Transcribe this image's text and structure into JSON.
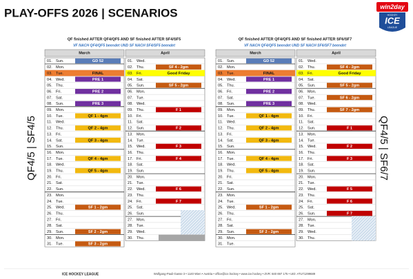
{
  "title": "PLAY-OFFS 2026 | SCENARIOS",
  "logo": {
    "brand": "win2day",
    "top": "HOCKEY",
    "main": "ICE",
    "bottom": "LEAGUE"
  },
  "footer": {
    "left": "ICE HOCKEY LEAGUE",
    "address": "Wolfgang-Pauli-Gasse 3 • 1140 Wien • Austria • office@ice.hockey • www.ice.hockey • ZVR: 840 697 175 • UID: ATU71299689"
  },
  "panels": [
    {
      "side_label": "QF4/5 | SF4/5",
      "header": "QF finished AFTER QF4/QF5 AND SF finished AFTER SF4/SF5",
      "subheader": "VF NACH QF4/QF5 beendet UND SF NACH SF4/SF5 beendet",
      "months": [
        {
          "name": "March",
          "rows": [
            {
              "d": "01.",
              "w": "Sun.",
              "e": "GD 52",
              "c": "#5a7db8"
            },
            {
              "d": "02.",
              "w": "Mon."
            },
            {
              "d": "03.",
              "w": "Tue.",
              "e": "FINAL",
              "bg": "#ed7d31"
            },
            {
              "d": "04.",
              "w": "Wed.",
              "e": "PRE 1",
              "c": "#7030a0"
            },
            {
              "d": "05.",
              "w": "Thu."
            },
            {
              "d": "06.",
              "w": "Fri.",
              "e": "PRE 2",
              "c": "#7030a0"
            },
            {
              "d": "07.",
              "w": "Sat."
            },
            {
              "d": "08.",
              "w": "Sun.",
              "e": "PRE 3",
              "c": "#7030a0"
            },
            {
              "d": "09.",
              "w": "Mon."
            },
            {
              "d": "10.",
              "w": "Tue.",
              "e": "QF 1 - 4gm",
              "c": "#f2b90f"
            },
            {
              "d": "11.",
              "w": "Wed."
            },
            {
              "d": "12.",
              "w": "Thu.",
              "e": "QF 2 - 4gm",
              "c": "#f2b90f"
            },
            {
              "d": "13.",
              "w": "Fri."
            },
            {
              "d": "14.",
              "w": "Sat.",
              "e": "QF 3 - 4gm",
              "c": "#f2b90f"
            },
            {
              "d": "15.",
              "w": "Sun."
            },
            {
              "d": "16.",
              "w": "Mon."
            },
            {
              "d": "17.",
              "w": "Tue.",
              "e": "QF 4 - 4gm",
              "c": "#f2b90f"
            },
            {
              "d": "18.",
              "w": "Wed."
            },
            {
              "d": "19.",
              "w": "Thu.",
              "e": "QF 5 - 4gm",
              "c": "#f2b90f"
            },
            {
              "d": "20.",
              "w": "Fri."
            },
            {
              "d": "21.",
              "w": "Sat."
            },
            {
              "d": "22.",
              "w": "Sun."
            },
            {
              "d": "23.",
              "w": "Mon."
            },
            {
              "d": "24.",
              "w": "Tue."
            },
            {
              "d": "25.",
              "w": "Wed.",
              "e": "SF 1 - 2gm",
              "c": "#c55a11"
            },
            {
              "d": "26.",
              "w": "Thu."
            },
            {
              "d": "27.",
              "w": "Fri."
            },
            {
              "d": "28.",
              "w": "Sat."
            },
            {
              "d": "29.",
              "w": "Sun.",
              "e": "SF 2 - 2gm",
              "c": "#c55a11"
            },
            {
              "d": "30.",
              "w": "Mon."
            },
            {
              "d": "31.",
              "w": "Tue.",
              "e": "SF 3 - 2gm",
              "c": "#c55a11"
            }
          ]
        },
        {
          "name": "April",
          "rows": [
            {
              "d": "01.",
              "w": "Wed."
            },
            {
              "d": "02.",
              "w": "Thu.",
              "e": "SF 4 - 2gm",
              "c": "#c55a11"
            },
            {
              "d": "03.",
              "w": "Fri.",
              "e": "Good Friday",
              "bg": "#ffff00"
            },
            {
              "d": "04.",
              "w": "Sat."
            },
            {
              "d": "05.",
              "w": "Sun.",
              "e": "SF 5 - 2gm",
              "c": "#c55a11"
            },
            {
              "d": "06.",
              "w": "Mon."
            },
            {
              "d": "07.",
              "w": "Tue."
            },
            {
              "d": "08.",
              "w": "Wed."
            },
            {
              "d": "09.",
              "w": "Thu.",
              "e": "F 1",
              "c": "#c00000"
            },
            {
              "d": "10.",
              "w": "Fri."
            },
            {
              "d": "11.",
              "w": "Sat."
            },
            {
              "d": "12.",
              "w": "Sun.",
              "e": "F 2",
              "c": "#c00000"
            },
            {
              "d": "13.",
              "w": "Mon."
            },
            {
              "d": "14.",
              "w": "Tue."
            },
            {
              "d": "15.",
              "w": "Wed.",
              "e": "F 3",
              "c": "#c00000"
            },
            {
              "d": "16.",
              "w": "Thu."
            },
            {
              "d": "17.",
              "w": "Fri.",
              "e": "F 4",
              "c": "#c00000"
            },
            {
              "d": "18.",
              "w": "Sat."
            },
            {
              "d": "19.",
              "w": "Sun."
            },
            {
              "d": "20.",
              "w": "Mon."
            },
            {
              "d": "21.",
              "w": "Tue."
            },
            {
              "d": "22.",
              "w": "Wed.",
              "e": "F 6",
              "c": "#c00000"
            },
            {
              "d": "23.",
              "w": "Thu."
            },
            {
              "d": "24.",
              "w": "Fri.",
              "e": "F 7",
              "c": "#c00000"
            },
            {
              "d": "25.",
              "w": "Sat."
            },
            {
              "d": "26.",
              "w": "Sun."
            },
            {
              "d": "27.",
              "w": "Mon."
            },
            {
              "d": "28.",
              "w": "Tue."
            },
            {
              "d": "29.",
              "w": "Wed."
            },
            {
              "d": "30.",
              "w": "Thu."
            }
          ]
        }
      ]
    },
    {
      "side_label": "QF4/5 | SF6/7",
      "header": "QF finished AFTER QF4/QF5 AND SF finished AFTER SF6/SF7",
      "subheader": "VF NACH QF4/QF5 beendet UND SF NACH SF6/SF7 beendet",
      "months": [
        {
          "name": "March",
          "rows": [
            {
              "d": "01.",
              "w": "Sun.",
              "e": "GD 52",
              "c": "#5a7db8"
            },
            {
              "d": "02.",
              "w": "Mon."
            },
            {
              "d": "03.",
              "w": "Tue.",
              "e": "FINAL",
              "bg": "#ed7d31"
            },
            {
              "d": "04.",
              "w": "Wed.",
              "e": "PRE 1",
              "c": "#7030a0"
            },
            {
              "d": "05.",
              "w": "Thu."
            },
            {
              "d": "06.",
              "w": "Fri.",
              "e": "PRE 2",
              "c": "#7030a0"
            },
            {
              "d": "07.",
              "w": "Sat."
            },
            {
              "d": "08.",
              "w": "Sun.",
              "e": "PRE 3",
              "c": "#7030a0"
            },
            {
              "d": "09.",
              "w": "Mon."
            },
            {
              "d": "10.",
              "w": "Tue.",
              "e": "QF 1 - 4gm",
              "c": "#f2b90f"
            },
            {
              "d": "11.",
              "w": "Wed."
            },
            {
              "d": "12.",
              "w": "Thu.",
              "e": "QF 2 - 4gm",
              "c": "#f2b90f"
            },
            {
              "d": "13.",
              "w": "Fri."
            },
            {
              "d": "14.",
              "w": "Sat.",
              "e": "QF 3 - 4gm",
              "c": "#f2b90f"
            },
            {
              "d": "15.",
              "w": "Sun."
            },
            {
              "d": "16.",
              "w": "Mon."
            },
            {
              "d": "17.",
              "w": "Tue.",
              "e": "QF 4 - 4gm",
              "c": "#f2b90f"
            },
            {
              "d": "18.",
              "w": "Wed."
            },
            {
              "d": "19.",
              "w": "Thu.",
              "e": "QF 5 - 4gm",
              "c": "#f2b90f"
            },
            {
              "d": "20.",
              "w": "Fri."
            },
            {
              "d": "21.",
              "w": "Sat."
            },
            {
              "d": "22.",
              "w": "Sun."
            },
            {
              "d": "23.",
              "w": "Mon."
            },
            {
              "d": "24.",
              "w": "Tue."
            },
            {
              "d": "25.",
              "w": "Wed.",
              "e": "SF 1 - 2gm",
              "c": "#c55a11"
            },
            {
              "d": "26.",
              "w": "Thu."
            },
            {
              "d": "27.",
              "w": "Fri."
            },
            {
              "d": "28.",
              "w": "Sat."
            },
            {
              "d": "29.",
              "w": "Sun.",
              "e": "SF 2 - 2gm",
              "c": "#c55a11"
            },
            {
              "d": "30.",
              "w": "Mon."
            },
            {
              "d": "31.",
              "w": "Tue."
            }
          ]
        },
        {
          "name": "April",
          "rows": [
            {
              "d": "01.",
              "w": "Wed."
            },
            {
              "d": "02.",
              "w": "Thu.",
              "e": "SF 4 - 2gm",
              "c": "#c55a11"
            },
            {
              "d": "03.",
              "w": "Fri.",
              "e": "Good Friday",
              "bg": "#ffff00"
            },
            {
              "d": "04.",
              "w": "Sat."
            },
            {
              "d": "05.",
              "w": "Sun.",
              "e": "SF 5 - 2gm",
              "c": "#c55a11"
            },
            {
              "d": "06.",
              "w": "Mon."
            },
            {
              "d": "07.",
              "w": "Tue.",
              "e": "SF 6 - 2gm",
              "c": "#c55a11"
            },
            {
              "d": "08.",
              "w": "Wed."
            },
            {
              "d": "09.",
              "w": "Thu.",
              "e": "SF 7 - 2gm",
              "c": "#c55a11"
            },
            {
              "d": "10.",
              "w": "Fri."
            },
            {
              "d": "11.",
              "w": "Sat."
            },
            {
              "d": "12.",
              "w": "Sun.",
              "e": "F 1",
              "c": "#c00000"
            },
            {
              "d": "13.",
              "w": "Mon."
            },
            {
              "d": "14.",
              "w": "Tue."
            },
            {
              "d": "15.",
              "w": "Wed.",
              "e": "F 2",
              "c": "#c00000"
            },
            {
              "d": "16.",
              "w": "Thu."
            },
            {
              "d": "17.",
              "w": "Fri.",
              "e": "F 3",
              "c": "#c00000"
            },
            {
              "d": "18.",
              "w": "Sat."
            },
            {
              "d": "19.",
              "w": "Sun."
            },
            {
              "d": "20.",
              "w": "Mon."
            },
            {
              "d": "21.",
              "w": "Tue."
            },
            {
              "d": "22.",
              "w": "Wed.",
              "e": "F 5",
              "c": "#c00000"
            },
            {
              "d": "23.",
              "w": "Thu."
            },
            {
              "d": "24.",
              "w": "Fri.",
              "e": "F 6",
              "c": "#c00000"
            },
            {
              "d": "25.",
              "w": "Sat."
            },
            {
              "d": "26.",
              "w": "Sun.",
              "e": "F 7",
              "c": "#c00000"
            },
            {
              "d": "27.",
              "w": "Mon."
            },
            {
              "d": "28.",
              "w": "Tue."
            },
            {
              "d": "29.",
              "w": "Wed."
            },
            {
              "d": "30.",
              "w": "Thu."
            }
          ]
        }
      ]
    }
  ]
}
